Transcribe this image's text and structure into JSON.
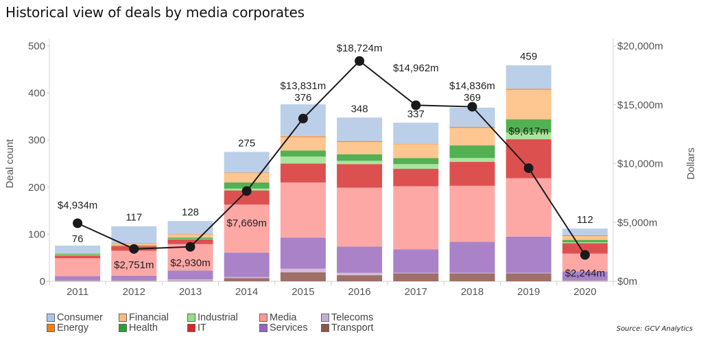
{
  "chart_data": {
    "type": "bar",
    "title": "Historical view of deals by media corporates",
    "stacked": true,
    "categories": [
      "2011",
      "2012",
      "2013",
      "2014",
      "2015",
      "2016",
      "2017",
      "2018",
      "2019",
      "2020"
    ],
    "xlabel": "",
    "ylabel": "Deal count",
    "ylim": [
      0,
      500
    ],
    "yticks": [
      0,
      100,
      200,
      300,
      400,
      500
    ],
    "y2label": "Dollars",
    "y2lim": [
      0,
      20000
    ],
    "y2ticks": [
      {
        "value": 0,
        "label": "$0m"
      },
      {
        "value": 5000,
        "label": "$5,000m"
      },
      {
        "value": 10000,
        "label": "$10,000m"
      },
      {
        "value": 15000,
        "label": "$15,000m"
      },
      {
        "value": 20000,
        "label": "$20,000m"
      }
    ],
    "grid": false,
    "totals": [
      76,
      117,
      128,
      275,
      376,
      348,
      337,
      369,
      459,
      112
    ],
    "series": [
      {
        "name": "Transport",
        "color": "#9e7068",
        "values": [
          1,
          1,
          1,
          7,
          19,
          13,
          17,
          17,
          17,
          1
        ]
      },
      {
        "name": "Telecoms",
        "color": "#d2bcdc",
        "values": [
          1,
          1,
          3,
          2,
          8,
          5,
          1,
          1,
          1,
          1
        ]
      },
      {
        "name": "Services",
        "color": "#a982c8",
        "values": [
          9,
          10,
          19,
          52,
          66,
          56,
          50,
          66,
          77,
          19
        ]
      },
      {
        "name": "Media",
        "color": "#fea8a6",
        "values": [
          38,
          53,
          56,
          102,
          117,
          125,
          134,
          119,
          124,
          38
        ]
      },
      {
        "name": "IT",
        "color": "#dd5050",
        "values": [
          6,
          10,
          10,
          30,
          40,
          50,
          37,
          51,
          83,
          22
        ]
      },
      {
        "name": "Industrial",
        "color": "#abe49e",
        "values": [
          1,
          1,
          1,
          4,
          15,
          7,
          10,
          8,
          14,
          2
        ]
      },
      {
        "name": "Health",
        "color": "#52b152",
        "values": [
          2,
          1,
          3,
          13,
          13,
          14,
          13,
          27,
          28,
          5
        ]
      },
      {
        "name": "Financial",
        "color": "#fec690",
        "values": [
          1,
          3,
          6,
          20,
          28,
          26,
          29,
          37,
          63,
          8
        ]
      },
      {
        "name": "Energy",
        "color": "#fb8a2a",
        "values": [
          1,
          1,
          1,
          1,
          2,
          2,
          1,
          2,
          2,
          2
        ]
      },
      {
        "name": "Consumer",
        "color": "#bccfe8",
        "values": [
          16,
          36,
          28,
          44,
          68,
          50,
          45,
          41,
          50,
          14
        ]
      }
    ],
    "line_series": {
      "name": "Dollars",
      "axis": "right",
      "color": "#1a1a1a",
      "values": [
        4934,
        2751,
        2930,
        7669,
        13831,
        18724,
        14962,
        14836,
        9617,
        2244
      ],
      "labels": [
        "$4,934m",
        "$2,751m",
        "$2,930m",
        "$7,669m",
        "$13,831m",
        "$18,724m",
        "$14,962m",
        "$14,836m",
        "$9,617m",
        "$2,244m"
      ]
    },
    "legend": {
      "placement": "bottom-left",
      "items": [
        {
          "name": "Consumer",
          "color": "#aec7e8"
        },
        {
          "name": "Energy",
          "color": "#ff7f0e"
        },
        {
          "name": "Financial",
          "color": "#ffbb78"
        },
        {
          "name": "Health",
          "color": "#2ca02c"
        },
        {
          "name": "Industrial",
          "color": "#98df8a"
        },
        {
          "name": "IT",
          "color": "#d62728"
        },
        {
          "name": "Media",
          "color": "#ff9896"
        },
        {
          "name": "Services",
          "color": "#9467bd"
        },
        {
          "name": "Telecoms",
          "color": "#c5b0d5"
        },
        {
          "name": "Transport",
          "color": "#8c564b"
        }
      ]
    },
    "source": "Source: GCV Analytics"
  }
}
